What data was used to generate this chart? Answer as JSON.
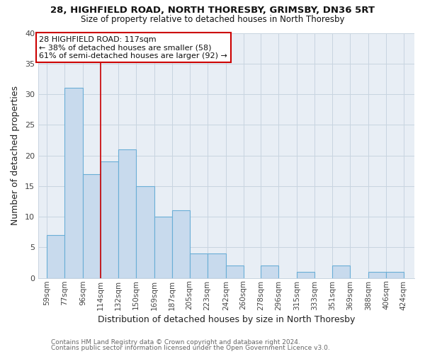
{
  "title1": "28, HIGHFIELD ROAD, NORTH THORESBY, GRIMSBY, DN36 5RT",
  "title2": "Size of property relative to detached houses in North Thoresby",
  "xlabel": "Distribution of detached houses by size in North Thoresby",
  "ylabel": "Number of detached properties",
  "footer1": "Contains HM Land Registry data © Crown copyright and database right 2024.",
  "footer2": "Contains public sector information licensed under the Open Government Licence v3.0.",
  "annotation_line1": "28 HIGHFIELD ROAD: 117sqm",
  "annotation_line2": "← 38% of detached houses are smaller (58)",
  "annotation_line3": "61% of semi-detached houses are larger (92) →",
  "bar_left_edges": [
    59,
    77,
    96,
    114,
    132,
    150,
    169,
    187,
    205,
    223,
    242,
    260,
    278,
    296,
    315,
    333,
    351,
    369,
    388,
    406
  ],
  "bar_heights": [
    7,
    31,
    17,
    19,
    21,
    15,
    10,
    11,
    4,
    4,
    2,
    0,
    2,
    0,
    1,
    0,
    2,
    0,
    1,
    1
  ],
  "bar_widths": [
    18,
    19,
    18,
    18,
    18,
    19,
    18,
    18,
    18,
    19,
    18,
    18,
    18,
    19,
    18,
    18,
    18,
    19,
    18,
    18
  ],
  "x_tick_labels": [
    "59sqm",
    "77sqm",
    "96sqm",
    "114sqm",
    "132sqm",
    "150sqm",
    "169sqm",
    "187sqm",
    "205sqm",
    "223sqm",
    "242sqm",
    "260sqm",
    "278sqm",
    "296sqm",
    "315sqm",
    "333sqm",
    "351sqm",
    "369sqm",
    "388sqm",
    "406sqm",
    "424sqm"
  ],
  "x_tick_positions": [
    59,
    77,
    96,
    114,
    132,
    150,
    169,
    187,
    205,
    223,
    242,
    260,
    278,
    296,
    315,
    333,
    351,
    369,
    388,
    406,
    424
  ],
  "ylim": [
    0,
    40
  ],
  "xlim": [
    50,
    435
  ],
  "bar_color": "#c8daed",
  "bar_edge_color": "#6aaed6",
  "ref_line_x": 114,
  "ref_line_color": "#cc0000",
  "grid_color": "#c8d4e0",
  "background_color": "#ffffff",
  "plot_bg_color": "#e8eef5",
  "annotation_box_color": "#ffffff",
  "annotation_box_edge": "#cc0000",
  "title1_fontsize": 9.5,
  "title2_fontsize": 8.5,
  "axis_label_fontsize": 9,
  "tick_fontsize": 7.5,
  "annotation_fontsize": 8,
  "footer_fontsize": 6.5
}
